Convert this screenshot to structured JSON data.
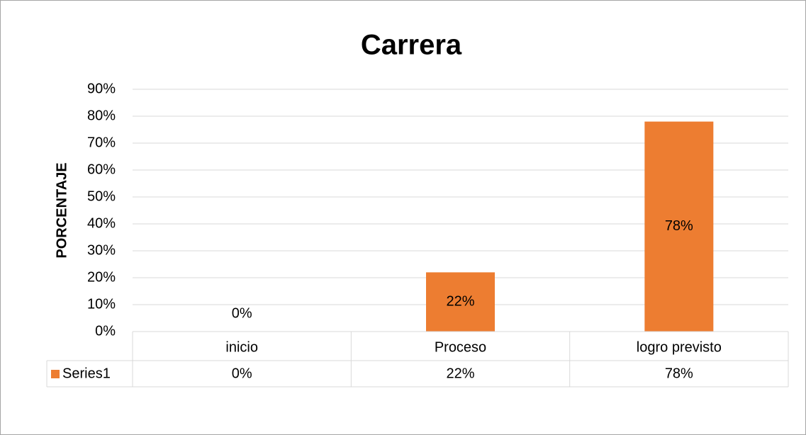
{
  "chart_data": {
    "type": "bar",
    "title": "Carrera",
    "y_label": "PORCENTAJE",
    "categories": [
      "inicio",
      "Proceso",
      "logro previsto"
    ],
    "series": [
      {
        "name": "Series1",
        "color": "#ed7d31",
        "values": [
          0,
          22,
          78
        ],
        "value_labels": [
          "0%",
          "22%",
          "78%"
        ]
      }
    ],
    "ylim": [
      0,
      90
    ],
    "yticks": [
      {
        "value": 0,
        "label": "0%"
      },
      {
        "value": 10,
        "label": "10%"
      },
      {
        "value": 20,
        "label": "20%"
      },
      {
        "value": 30,
        "label": "30%"
      },
      {
        "value": 40,
        "label": "40%"
      },
      {
        "value": 50,
        "label": "50%"
      },
      {
        "value": 60,
        "label": "60%"
      },
      {
        "value": 70,
        "label": "70%"
      },
      {
        "value": 80,
        "label": "80%"
      },
      {
        "value": 90,
        "label": "90%"
      }
    ],
    "grid": true,
    "data_table": true
  }
}
